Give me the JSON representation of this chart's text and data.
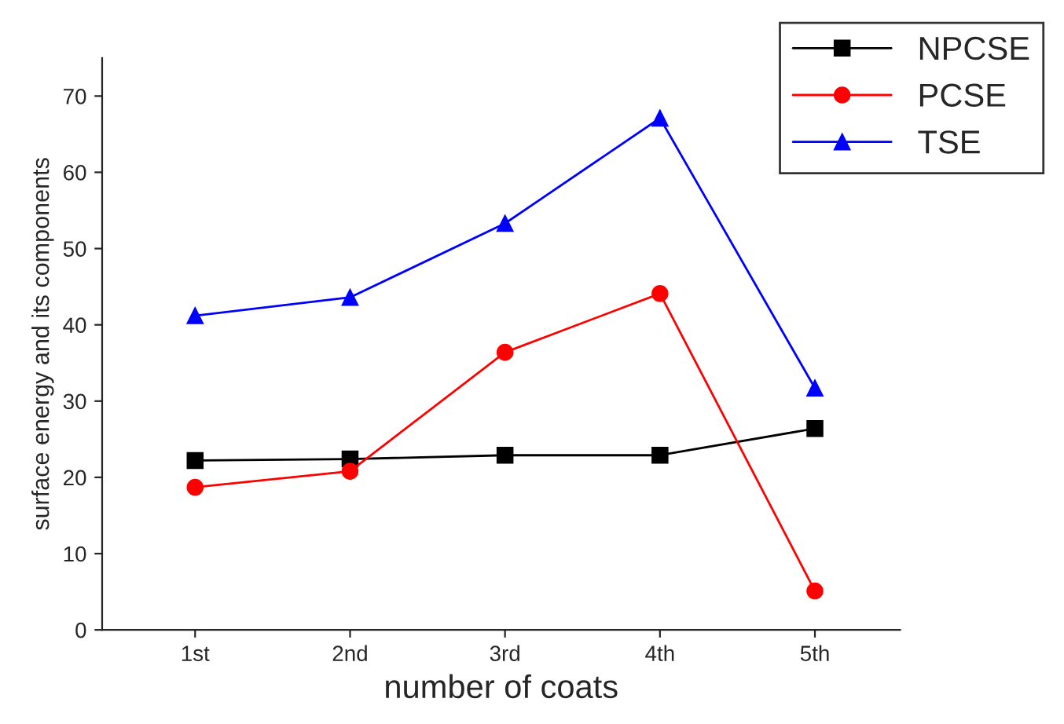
{
  "chart_data": {
    "type": "line",
    "xlabel": "number of coats",
    "ylabel": "surface energy and its components",
    "categories": [
      "1st",
      "2nd",
      "3rd",
      "4th",
      "5th"
    ],
    "series": [
      {
        "name": "NPCSE",
        "color": "#000000",
        "marker": "square",
        "values": [
          22.2,
          22.4,
          22.9,
          22.9,
          26.4
        ]
      },
      {
        "name": "PCSE",
        "color": "#ff0000",
        "marker": "circle",
        "values": [
          18.7,
          20.8,
          36.4,
          44.1,
          5.1
        ]
      },
      {
        "name": "TSE",
        "color": "#0000ff",
        "marker": "triangle",
        "values": [
          41.2,
          43.6,
          53.3,
          67.1,
          31.7
        ]
      }
    ],
    "ylim": [
      0,
      75
    ],
    "yticks": [
      0,
      10,
      20,
      30,
      40,
      50,
      60,
      70
    ],
    "grid": false,
    "legend": "top right",
    "line_style": "solid"
  }
}
